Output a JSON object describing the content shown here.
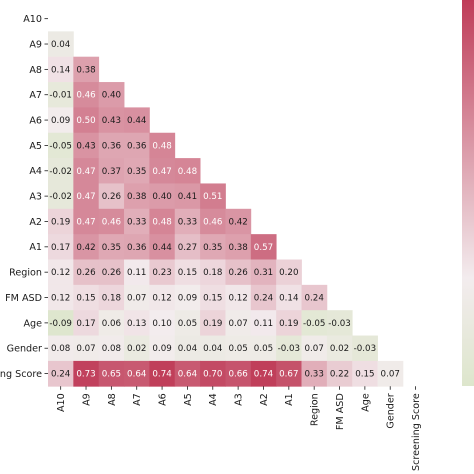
{
  "chart_data": {
    "type": "heatmap",
    "variables": [
      "A10",
      "A9",
      "A8",
      "A7",
      "A6",
      "A5",
      "A4",
      "A3",
      "A2",
      "A1",
      "Region",
      "FM ASD",
      "Age",
      "Gender",
      "Screening Score"
    ],
    "row_labels": [
      "A10",
      "A9",
      "A8",
      "A7",
      "A6",
      "A5",
      "A4",
      "A3",
      "A2",
      "A1",
      "Region",
      "FM ASD",
      "Age",
      "Gender",
      "eening Score"
    ],
    "col_labels": [
      "A10",
      "A9",
      "A8",
      "A7",
      "A6",
      "A5",
      "A4",
      "A3",
      "A2",
      "A1",
      "Region",
      "FM ASD",
      "Age",
      "Gender",
      "Screening Score"
    ],
    "mask": "upper triangle incl. diagonal",
    "matrix_lower": [
      [],
      [
        "0.04"
      ],
      [
        "0.14",
        "0.38"
      ],
      [
        "-0.01",
        "0.46",
        "0.40"
      ],
      [
        "0.09",
        "0.50",
        "0.43",
        "0.44"
      ],
      [
        "-0.05",
        "0.43",
        "0.36",
        "0.36",
        "0.48"
      ],
      [
        "-0.02",
        "0.47",
        "0.37",
        "0.35",
        "0.47",
        "0.48"
      ],
      [
        "-0.02",
        "0.47",
        "0.26",
        "0.38",
        "0.40",
        "0.41",
        "0.51"
      ],
      [
        "0.19",
        "0.47",
        "0.46",
        "0.33",
        "0.48",
        "0.33",
        "0.46",
        "0.42"
      ],
      [
        "0.17",
        "0.42",
        "0.35",
        "0.36",
        "0.44",
        "0.27",
        "0.35",
        "0.38",
        "0.57"
      ],
      [
        "0.12",
        "0.26",
        "0.26",
        "0.11",
        "0.23",
        "0.15",
        "0.18",
        "0.26",
        "0.31",
        "0.20"
      ],
      [
        "0.12",
        "0.15",
        "0.18",
        "0.07",
        "0.12",
        "0.09",
        "0.15",
        "0.12",
        "0.24",
        "0.14",
        "0.24"
      ],
      [
        "-0.09",
        "0.17",
        "0.06",
        "0.13",
        "0.10",
        "0.05",
        "0.19",
        "0.07",
        "0.11",
        "0.19",
        "-0.05",
        "-0.03"
      ],
      [
        "0.08",
        "0.07",
        "0.08",
        "0.02",
        "0.09",
        "0.04",
        "0.04",
        "0.05",
        "0.05",
        "-0.03",
        "0.07",
        "0.02",
        "-0.03"
      ],
      [
        "0.24",
        "0.73",
        "0.65",
        "0.64",
        "0.74",
        "0.64",
        "0.70",
        "0.66",
        "0.74",
        "0.67",
        "0.33",
        "0.22",
        "0.15",
        "0.07"
      ]
    ],
    "colormap": {
      "low": "#dde6cc",
      "mid": "#f3ecee",
      "high": "#bf3c58",
      "vmin": -0.1,
      "vcenter": 0.1,
      "vmax": 0.75
    }
  }
}
